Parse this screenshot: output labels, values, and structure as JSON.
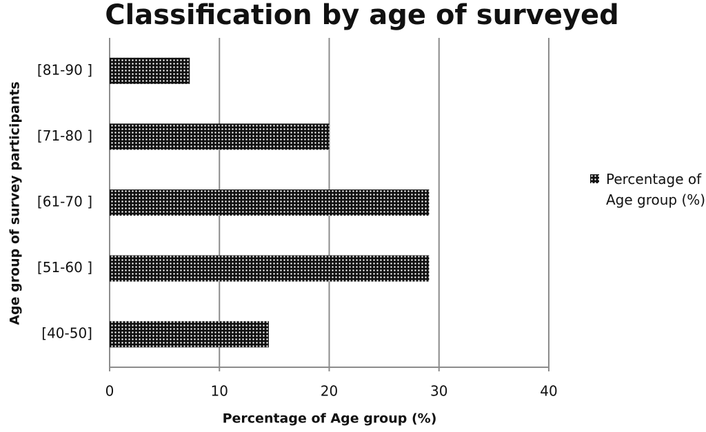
{
  "chart_data": {
    "type": "hbar",
    "title": "Classification by age of surveyed",
    "x_label": "Percentage of Age group (%)",
    "y_label": "Age group of survey participants",
    "categories": [
      "[40-50]",
      "[51-60 ]",
      "[61-70 ]",
      "[71-80 ]",
      "[81-90 ]"
    ],
    "series": [
      {
        "name": "Percentage of Age group (%)",
        "color": "#111111",
        "values": [
          14.5,
          29.1,
          29.1,
          20.0,
          7.3
        ]
      }
    ],
    "xlim": [
      0,
      40
    ],
    "xticks": [
      0,
      10,
      20,
      30,
      40
    ],
    "grid": true,
    "legend": "right"
  }
}
